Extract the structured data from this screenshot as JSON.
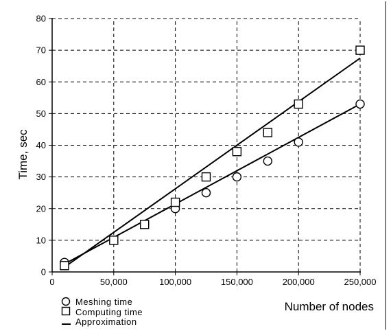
{
  "chart_data": {
    "type": "scatter",
    "xlabel": "Number of nodes",
    "ylabel": "Time, sec",
    "xlim": [
      0,
      250000
    ],
    "ylim": [
      0,
      80
    ],
    "x_ticks": [
      0,
      50000,
      100000,
      150000,
      200000,
      250000
    ],
    "x_tick_labels": [
      "0",
      "50,000",
      "100,000",
      "150,000",
      "200,000",
      "250,000"
    ],
    "y_ticks": [
      0,
      10,
      20,
      30,
      40,
      50,
      60,
      70,
      80
    ],
    "y_tick_labels": [
      "0",
      "10",
      "20",
      "30",
      "40",
      "50",
      "60",
      "70",
      "80"
    ],
    "grid": true,
    "legend_position": "bottom-left",
    "series": [
      {
        "name": "Meshing time",
        "marker": "circle",
        "x": [
          10000,
          50000,
          75000,
          100000,
          125000,
          150000,
          175000,
          200000,
          250000
        ],
        "y": [
          3,
          10,
          15,
          20,
          25,
          30,
          35,
          41,
          53
        ]
      },
      {
        "name": "Computing time",
        "marker": "square",
        "x": [
          10000,
          50000,
          75000,
          100000,
          125000,
          150000,
          175000,
          200000,
          250000
        ],
        "y": [
          2,
          10,
          15,
          22,
          30,
          38,
          44,
          53,
          70
        ]
      }
    ],
    "approximation": {
      "name": "Approximation",
      "lines": [
        {
          "x": [
            10000,
            250000
          ],
          "y": [
            2.5,
            53
          ]
        },
        {
          "x": [
            10000,
            250000
          ],
          "y": [
            1.5,
            67.5
          ]
        }
      ]
    }
  }
}
